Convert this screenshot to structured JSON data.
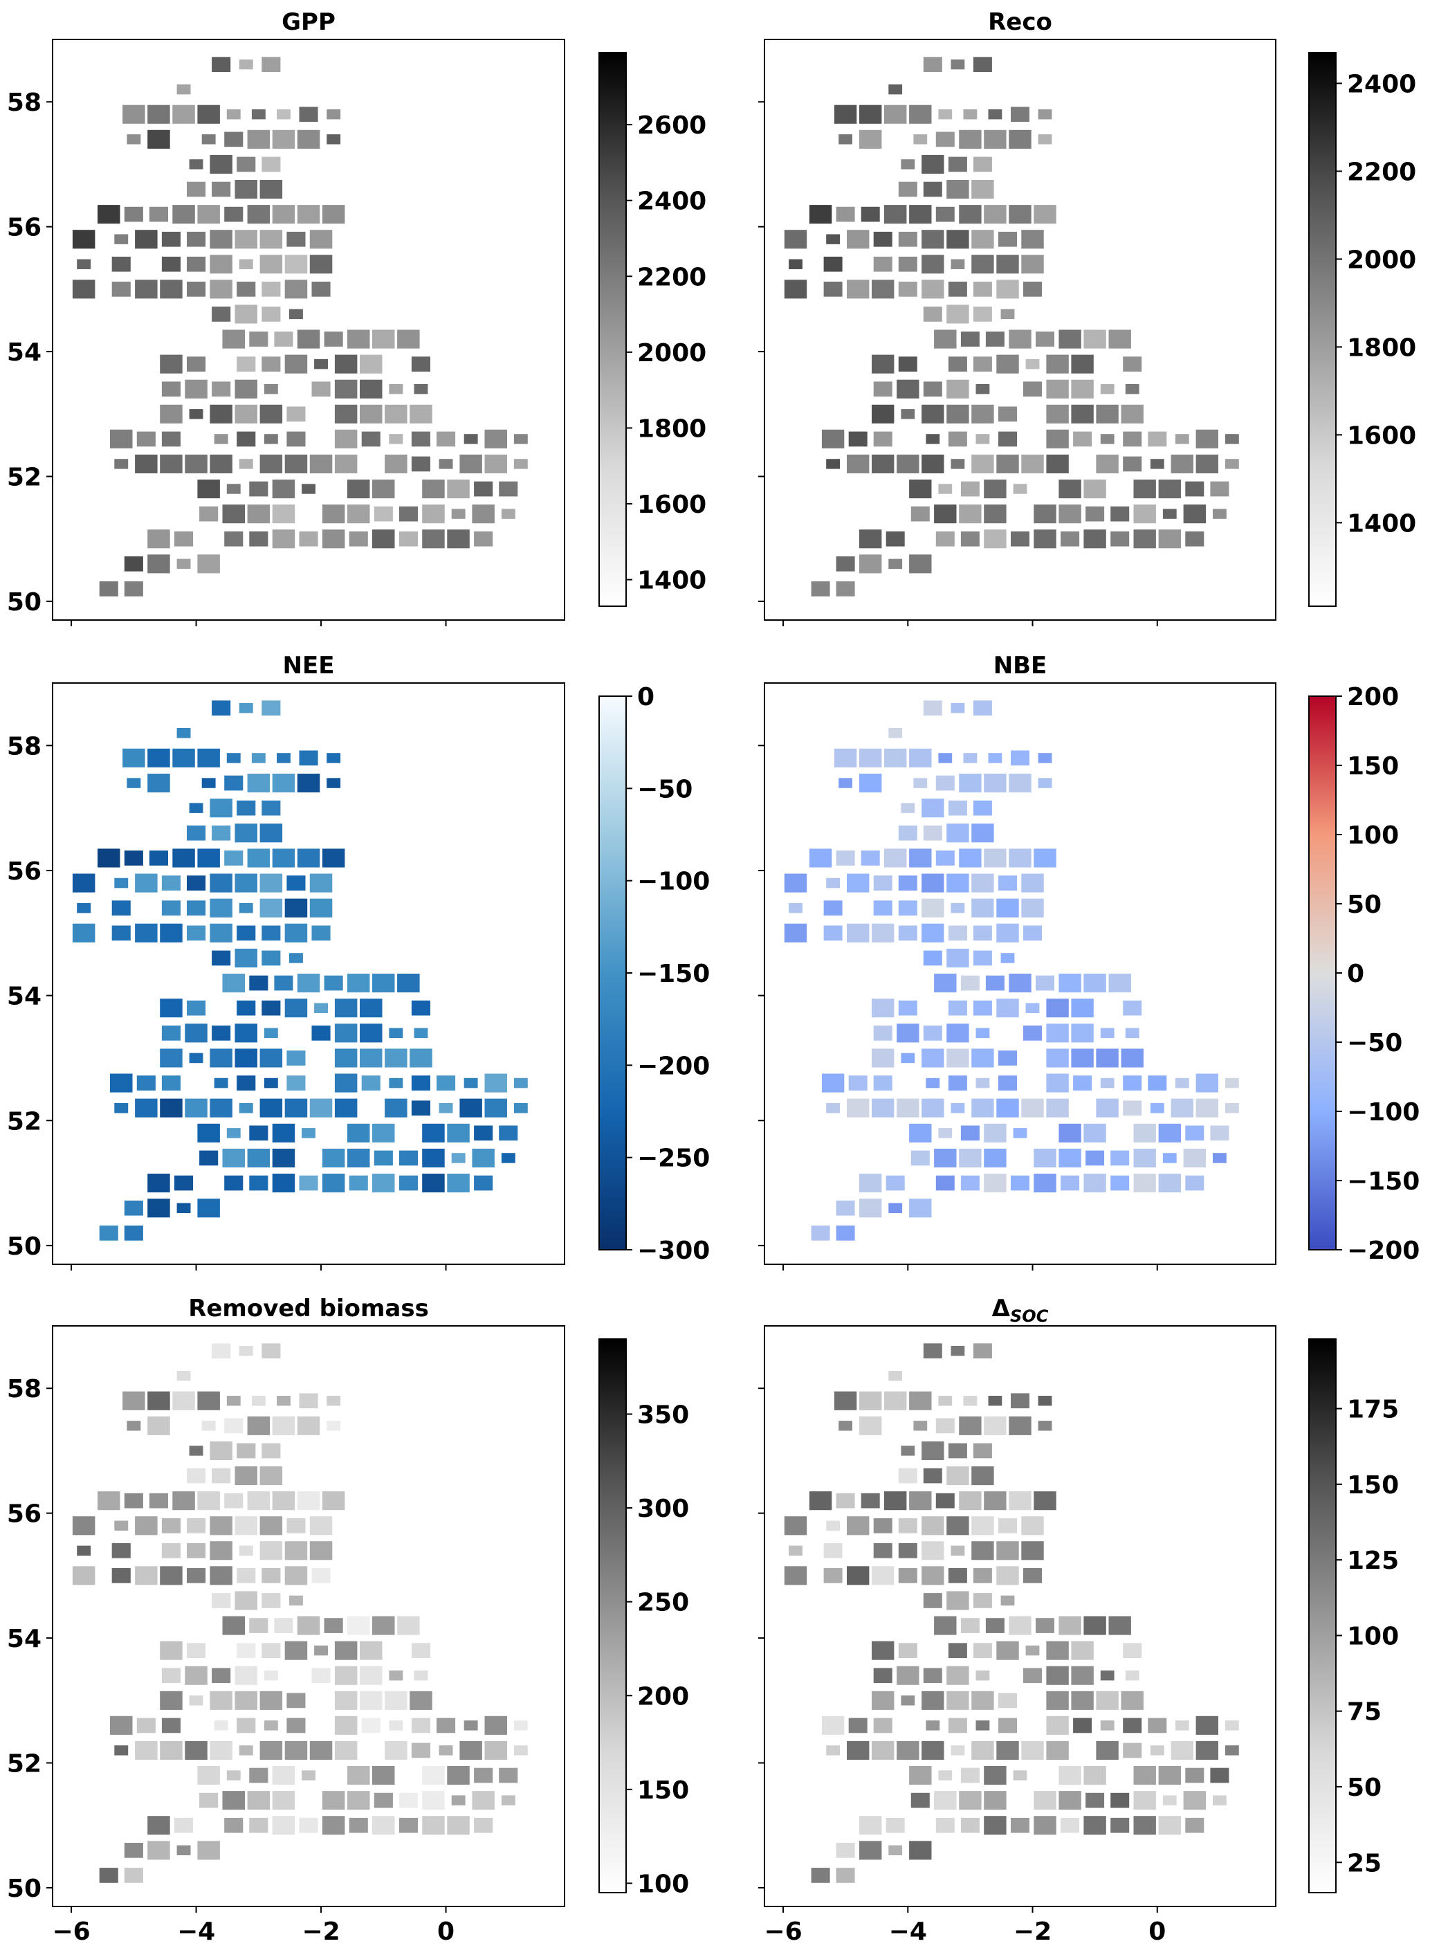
{
  "figure": {
    "xticks": [
      "−6",
      "−4",
      "−2",
      "0"
    ],
    "yticks": [
      "50",
      "52",
      "54",
      "56",
      "58"
    ]
  },
  "chart_data": [
    {
      "type": "heatmap",
      "title": "GPP",
      "colormap": "Greys",
      "colorbar_ticks": [
        "1400",
        "1600",
        "1800",
        "2000",
        "2200",
        "2400",
        "2600"
      ],
      "colorbar_range": [
        1330,
        2790
      ],
      "xlim": [
        -6.3,
        1.9
      ],
      "ylim": [
        49.7,
        59.0
      ],
      "grid": false
    },
    {
      "type": "heatmap",
      "title": "Reco",
      "colormap": "Greys",
      "colorbar_ticks": [
        "1400",
        "1600",
        "1800",
        "2000",
        "2200",
        "2400"
      ],
      "colorbar_range": [
        1210,
        2470
      ],
      "xlim": [
        -6.3,
        1.9
      ],
      "ylim": [
        49.7,
        59.0
      ],
      "grid": false
    },
    {
      "type": "heatmap",
      "title": "NEE",
      "colormap": "Blues_r",
      "colorbar_ticks": [
        "0",
        "−50",
        "−100",
        "−150",
        "−200",
        "−250",
        "−300"
      ],
      "colorbar_range": [
        -300,
        0
      ],
      "xlim": [
        -6.3,
        1.9
      ],
      "ylim": [
        49.7,
        59.0
      ],
      "grid": false
    },
    {
      "type": "heatmap",
      "title": "NBE",
      "colormap": "coolwarm",
      "colorbar_ticks": [
        "200",
        "150",
        "100",
        "50",
        "0",
        "−50",
        "−100",
        "−150",
        "−200"
      ],
      "colorbar_range": [
        -200,
        200
      ],
      "xlim": [
        -6.3,
        1.9
      ],
      "ylim": [
        49.7,
        59.0
      ],
      "grid": false
    },
    {
      "type": "heatmap",
      "title": "Removed biomass",
      "colormap": "Greys",
      "colorbar_ticks": [
        "100",
        "150",
        "200",
        "250",
        "300",
        "350"
      ],
      "colorbar_range": [
        95,
        390
      ],
      "xlim": [
        -6.3,
        1.9
      ],
      "ylim": [
        49.7,
        59.0
      ],
      "grid": false
    },
    {
      "type": "heatmap",
      "title": "Δ",
      "title_subscript": "SOC",
      "colormap": "Greys",
      "colorbar_ticks": [
        "25",
        "50",
        "75",
        "100",
        "125",
        "150",
        "175"
      ],
      "colorbar_range": [
        15,
        198
      ],
      "xlim": [
        -6.3,
        1.9
      ],
      "ylim": [
        49.7,
        59.0
      ],
      "grid": false
    }
  ]
}
